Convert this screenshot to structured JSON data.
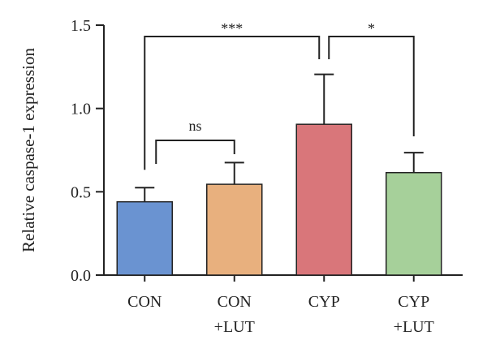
{
  "chart_data": {
    "type": "bar",
    "categories": [
      [
        "CON"
      ],
      [
        "CON",
        "+LUT"
      ],
      [
        "CYP"
      ],
      [
        "CYP",
        "+LUT"
      ]
    ],
    "values": [
      0.44,
      0.545,
      0.905,
      0.615
    ],
    "errors": [
      0.085,
      0.13,
      0.3,
      0.12
    ],
    "colors": [
      "#6a93d1",
      "#e8b07e",
      "#d9767a",
      "#a6d09a"
    ],
    "ylabel": "Relative caspase-1 expression",
    "xlabel": "",
    "ylim": [
      0.0,
      1.5
    ],
    "yticks": [
      0.0,
      0.5,
      1.0,
      1.5
    ],
    "ytick_labels": [
      "0.0",
      "0.5",
      "1.0",
      "1.5"
    ],
    "grid": false,
    "significance": [
      {
        "from": 0,
        "to": 2,
        "label": "***"
      },
      {
        "from": 0,
        "to": 1,
        "label": "ns"
      },
      {
        "from": 2,
        "to": 3,
        "label": "*"
      }
    ]
  }
}
